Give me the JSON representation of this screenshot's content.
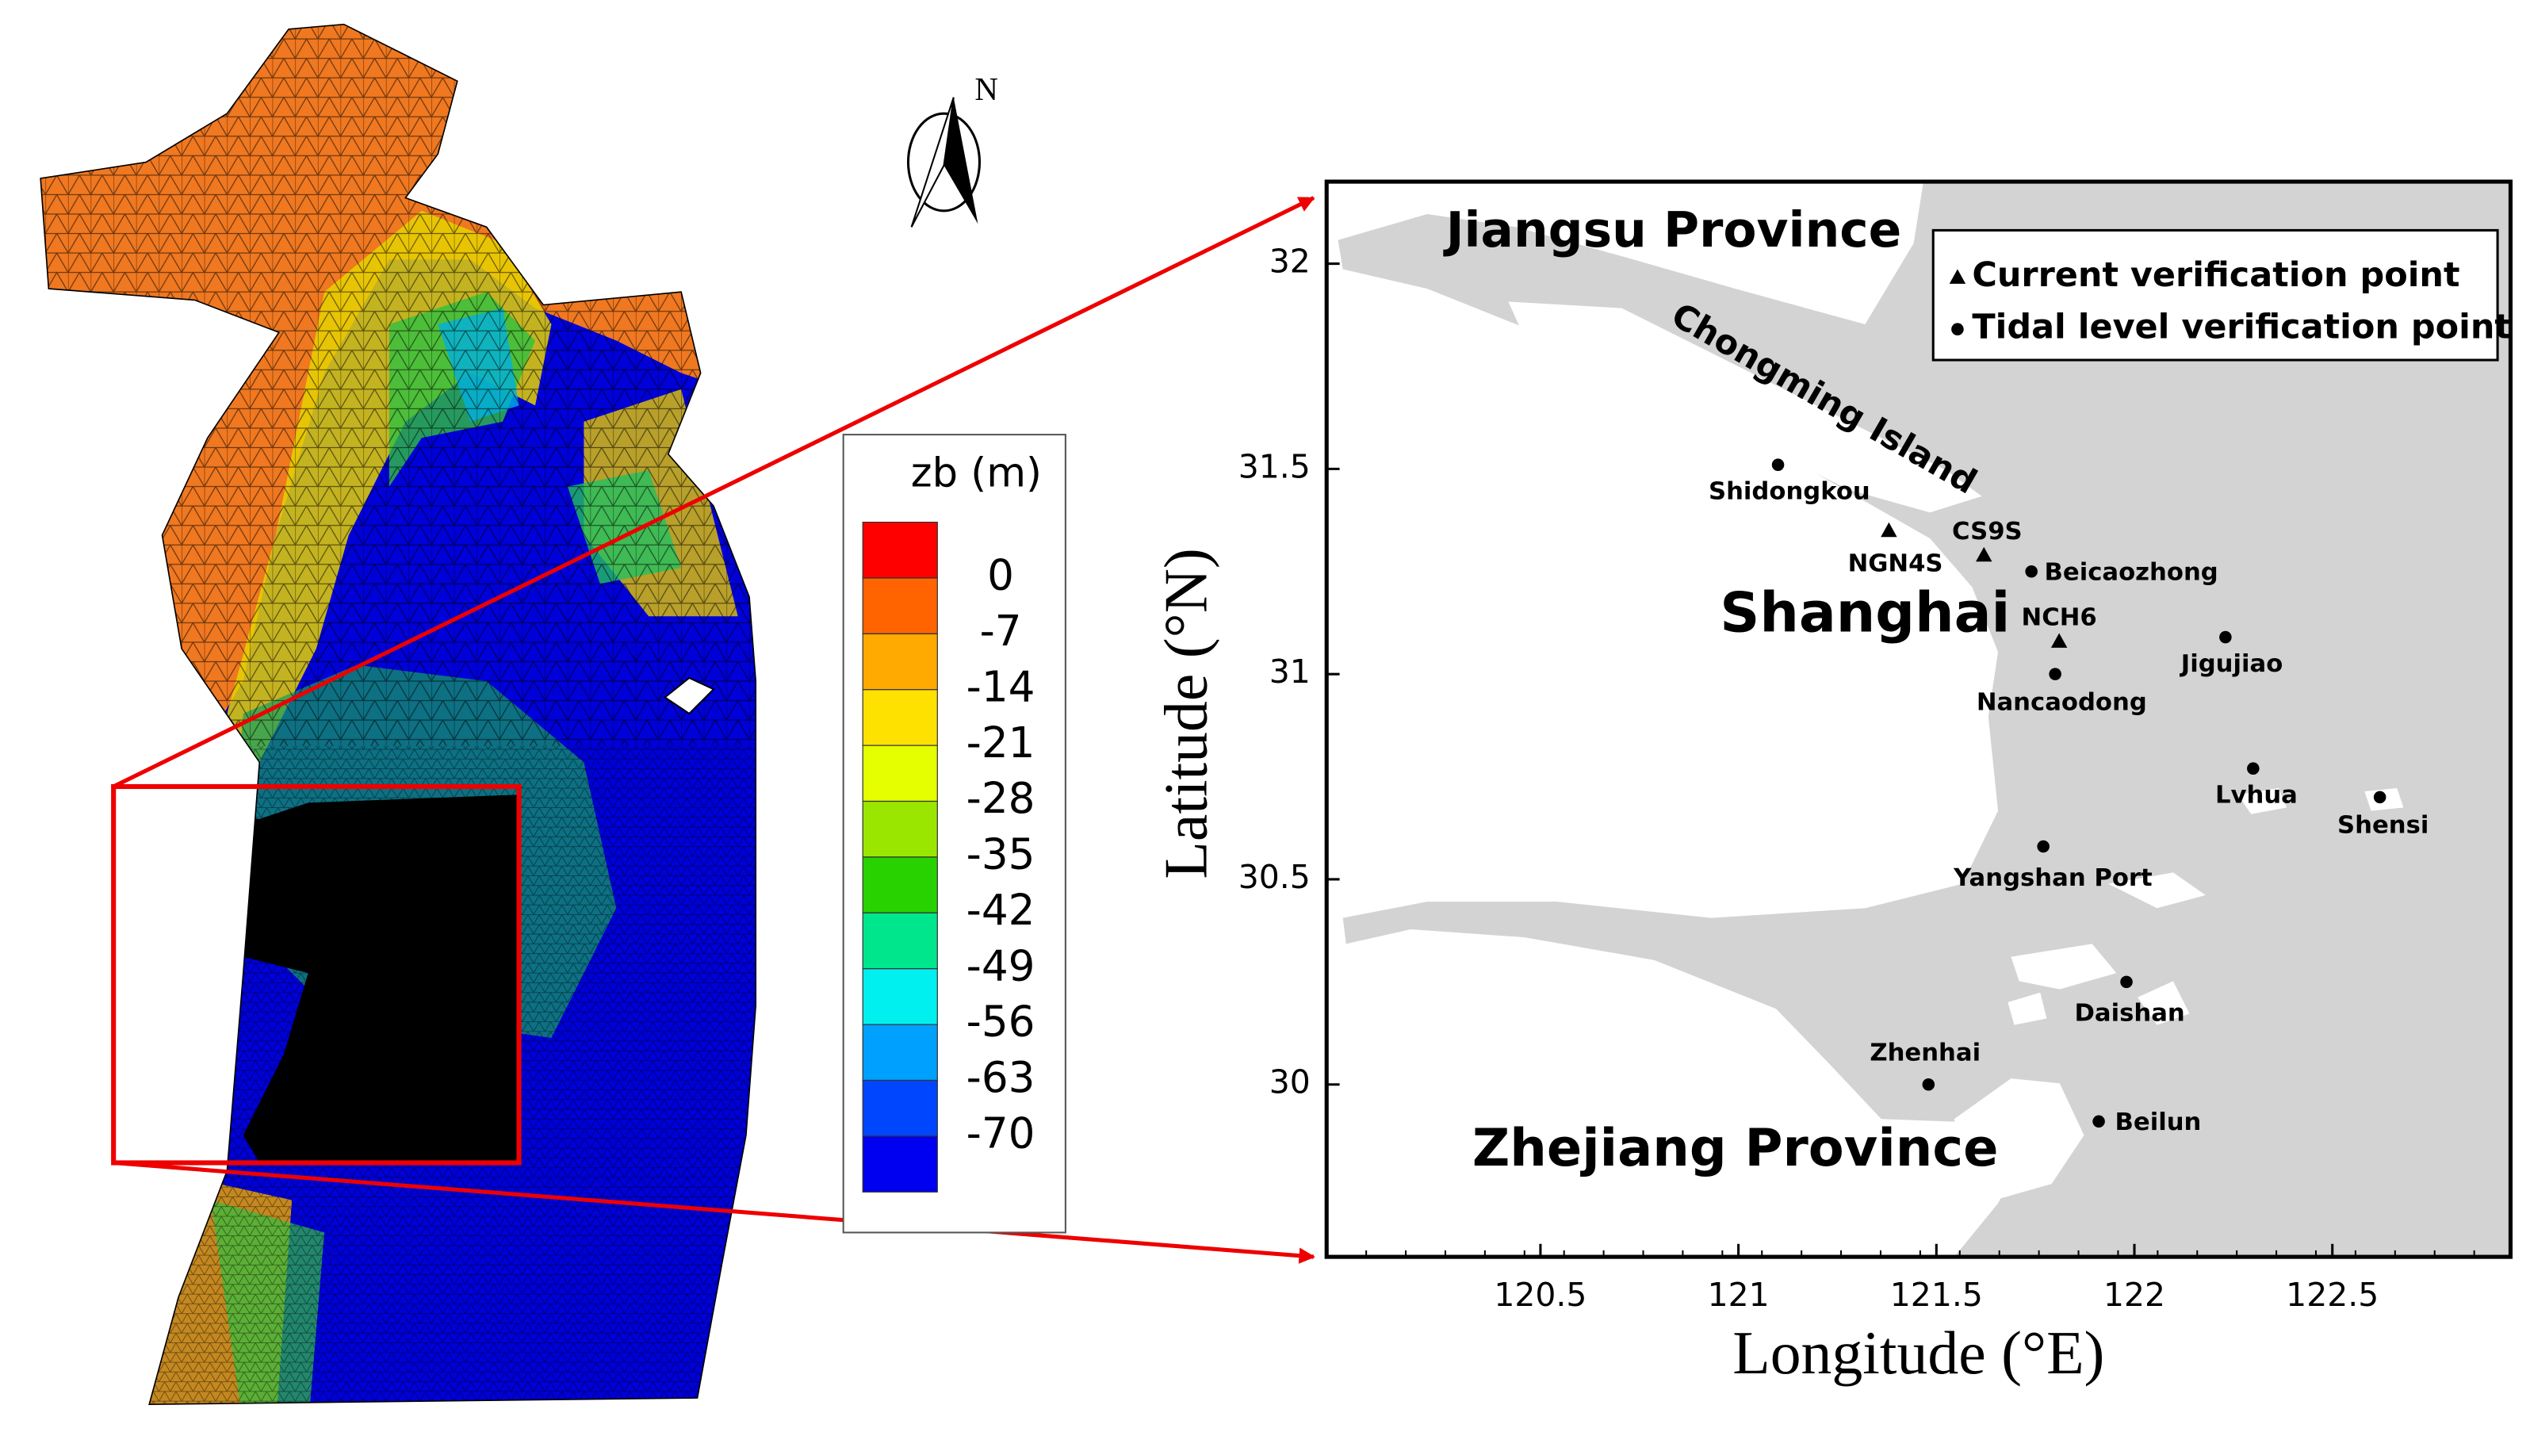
{
  "mesh_panel": {
    "north_label": "N",
    "colorbar": {
      "title": "zb (m)",
      "levels": [
        0,
        -7,
        -14,
        -21,
        -28,
        -35,
        -42,
        -49,
        -56,
        -63,
        -70
      ],
      "colors": [
        "#ff0000",
        "#ff6400",
        "#ffaa00",
        "#ffe100",
        "#e6ff00",
        "#9be600",
        "#28d200",
        "#00e68c",
        "#00f0f0",
        "#00a0ff",
        "#0046ff",
        "#0000f0"
      ]
    }
  },
  "location_map": {
    "xlabel": "Longitude (°E)",
    "ylabel": "Latitude (°N)",
    "xlim": [
      119.96,
      122.95
    ],
    "ylim": [
      29.58,
      32.2
    ],
    "xticks": [
      120.5,
      121,
      121.5,
      122,
      122.5
    ],
    "yticks": [
      30,
      30.5,
      31,
      31.5,
      32
    ],
    "regions": [
      "Jiangsu Province",
      "Chongming Island",
      "Shanghai",
      "Zhejiang Province"
    ],
    "legend": [
      {
        "marker": "triangle",
        "label": "Current verification point"
      },
      {
        "marker": "circle",
        "label": "Tidal level verification point"
      }
    ],
    "stations": [
      {
        "name": "Shidongkou",
        "marker": "circle",
        "lon": 121.1,
        "lat": 31.51
      },
      {
        "name": "NGN4S",
        "marker": "triangle",
        "lon": 121.38,
        "lat": 31.35
      },
      {
        "name": "CS9S",
        "marker": "triangle",
        "lon": 121.62,
        "lat": 31.29
      },
      {
        "name": "Beicaozhong",
        "marker": "circle",
        "lon": 121.74,
        "lat": 31.25
      },
      {
        "name": "NCH6",
        "marker": "triangle",
        "lon": 121.81,
        "lat": 31.08
      },
      {
        "name": "Nancaodong",
        "marker": "circle",
        "lon": 121.8,
        "lat": 31.0
      },
      {
        "name": "Jigujiao",
        "marker": "circle",
        "lon": 122.23,
        "lat": 31.09
      },
      {
        "name": "Lvhua",
        "marker": "circle",
        "lon": 122.3,
        "lat": 30.77
      },
      {
        "name": "Shensi",
        "marker": "circle",
        "lon": 122.62,
        "lat": 30.7
      },
      {
        "name": "Yangshan Port",
        "marker": "circle",
        "lon": 121.77,
        "lat": 30.58
      },
      {
        "name": "Daishan",
        "marker": "circle",
        "lon": 121.98,
        "lat": 30.25
      },
      {
        "name": "Zhenhai",
        "marker": "circle",
        "lon": 121.48,
        "lat": 30.0
      },
      {
        "name": "Beilun",
        "marker": "circle",
        "lon": 121.91,
        "lat": 29.91
      }
    ]
  }
}
